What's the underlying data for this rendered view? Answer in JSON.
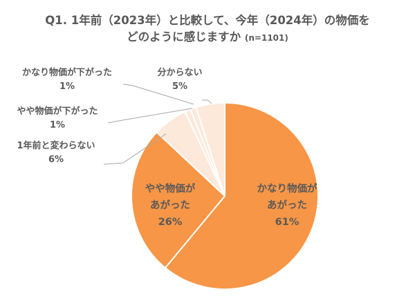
{
  "title": {
    "line1": "Q1. 1年前（2023年）と比較して、今年（2024年）の物価を",
    "line2": "どのように感じますか",
    "sample": "(n=1101)"
  },
  "chart_data": {
    "type": "pie",
    "title": "Q1. 1年前（2023年）と比較して、今年（2024年）の物価をどのように感じますか (n=1101)",
    "categories": [
      "かなり物価があがった",
      "やや物価があがった",
      "1年前と変わらない",
      "やや物価が下がった",
      "かなり物価が下がった",
      "分からない"
    ],
    "values": [
      61,
      26,
      6,
      1,
      1,
      5
    ],
    "unit": "%",
    "start_angle": "12 o'clock, clockwise",
    "colors": [
      "#F79646",
      "#F79646",
      "#FCE9DA",
      "#FCE9DA",
      "#FCE9DA",
      "#FCE9DA"
    ],
    "legend": "none (data labels)"
  },
  "labels": {
    "s0": {
      "l1": "かなり物価が",
      "l2": "あがった",
      "pct": "61%"
    },
    "s1": {
      "l1": "やや物価が",
      "l2": "あがった",
      "pct": "26%"
    },
    "s2": {
      "name": "1年前と変わらない",
      "pct": "6%"
    },
    "s3": {
      "name": "やや物価が下がった",
      "pct": "1%"
    },
    "s4": {
      "name": "かなり物価が下がった",
      "pct": "1%"
    },
    "s5": {
      "name": "分からない",
      "pct": "5%"
    }
  }
}
